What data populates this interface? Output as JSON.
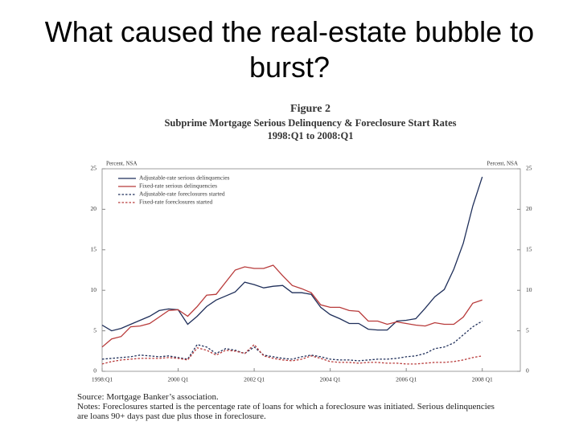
{
  "slide_title": "What caused the real-estate bubble to burst?",
  "chart_data": {
    "type": "line",
    "title": "Figure 2",
    "subtitle": "Subprime Mortgage Serious Delinquency & Foreclosure Start Rates",
    "date_range": "1998:Q1 to 2008:Q1",
    "y_label": "Percent, NSA",
    "y2_label": "Percent, NSA",
    "x": [
      1998,
      1998.25,
      1998.5,
      1998.75,
      1999,
      1999.25,
      1999.5,
      1999.75,
      2000,
      2000.25,
      2000.5,
      2000.75,
      2001,
      2001.25,
      2001.5,
      2001.75,
      2002,
      2002.25,
      2002.5,
      2002.75,
      2003,
      2003.25,
      2003.5,
      2003.75,
      2004,
      2004.25,
      2004.5,
      2004.75,
      2005,
      2005.25,
      2005.5,
      2005.75,
      2006,
      2006.25,
      2006.5,
      2006.75,
      2007,
      2007.25,
      2007.5,
      2007.75,
      2008
    ],
    "xlim": [
      1998,
      2009
    ],
    "xticks": [
      {
        "value": 1998,
        "label": "1998:Q1"
      },
      {
        "value": 2000,
        "label": "2000 Q1"
      },
      {
        "value": 2002,
        "label": "2002 Q1"
      },
      {
        "value": 2004,
        "label": "2004 Q1"
      },
      {
        "value": 2006,
        "label": "2006 Q1"
      },
      {
        "value": 2008,
        "label": "2008 Q1"
      }
    ],
    "ylim": [
      0,
      25
    ],
    "yticks": [
      0,
      5,
      10,
      15,
      20,
      25
    ],
    "y2lim": [
      0,
      25
    ],
    "y2ticks": [
      0,
      5,
      10,
      15,
      20,
      25
    ],
    "grid": false,
    "legend": "upper left",
    "series": [
      {
        "name": "Adjustable-rate serious delinquencies",
        "color": "#1f2f5a",
        "style": "solid",
        "values": [
          5.7,
          5.0,
          5.3,
          5.8,
          6.3,
          6.8,
          7.5,
          7.7,
          7.6,
          5.8,
          6.8,
          8.0,
          8.8,
          9.3,
          9.8,
          11.0,
          10.7,
          10.3,
          10.5,
          10.6,
          9.7,
          9.7,
          9.5,
          7.9,
          7.0,
          6.5,
          5.9,
          5.9,
          5.2,
          5.1,
          5.1,
          6.2,
          6.3,
          6.5,
          7.8,
          9.2,
          10.1,
          12.6,
          15.8,
          20.4,
          24.0
        ]
      },
      {
        "name": "Fixed-rate serious delinquencies",
        "color": "#b83a3a",
        "style": "solid",
        "values": [
          3.0,
          4.0,
          4.3,
          5.5,
          5.6,
          5.9,
          6.7,
          7.5,
          7.6,
          6.8,
          8.0,
          9.4,
          9.5,
          11.0,
          12.5,
          12.9,
          12.7,
          12.7,
          13.1,
          11.8,
          10.6,
          10.2,
          9.7,
          8.2,
          7.9,
          7.9,
          7.5,
          7.4,
          6.2,
          6.2,
          5.8,
          6.1,
          5.9,
          5.7,
          5.6,
          6.0,
          5.8,
          5.8,
          6.7,
          8.4,
          8.8
        ]
      },
      {
        "name": "Adjustable-rate foreclosures started",
        "color": "#1f2f5a",
        "style": "dashed",
        "values": [
          1.5,
          1.6,
          1.7,
          1.8,
          2.0,
          1.9,
          1.8,
          1.9,
          1.7,
          1.5,
          3.3,
          3.0,
          2.2,
          2.8,
          2.6,
          2.2,
          3.0,
          2.0,
          1.8,
          1.6,
          1.5,
          1.8,
          2.0,
          1.8,
          1.5,
          1.4,
          1.4,
          1.3,
          1.4,
          1.5,
          1.5,
          1.6,
          1.8,
          1.9,
          2.2,
          2.8,
          3.0,
          3.5,
          4.5,
          5.5,
          6.2
        ]
      },
      {
        "name": "Fixed-rate foreclosures started",
        "color": "#b83a3a",
        "style": "dashed",
        "values": [
          0.9,
          1.2,
          1.4,
          1.5,
          1.6,
          1.6,
          1.6,
          1.7,
          1.6,
          1.4,
          2.9,
          2.6,
          2.0,
          2.6,
          2.5,
          2.2,
          3.3,
          1.9,
          1.6,
          1.4,
          1.3,
          1.5,
          1.9,
          1.6,
          1.2,
          1.1,
          1.1,
          1.0,
          1.1,
          1.1,
          1.0,
          1.0,
          0.9,
          0.9,
          1.0,
          1.1,
          1.1,
          1.2,
          1.4,
          1.7,
          1.9
        ]
      }
    ],
    "source": "Source: Mortgage Banker’s association.",
    "notes": "Notes: Foreclosures started is the percentage rate of loans for which a foreclosure was initiated. Serious delinquencies are loans 90+ days past due plus those in foreclosure."
  }
}
